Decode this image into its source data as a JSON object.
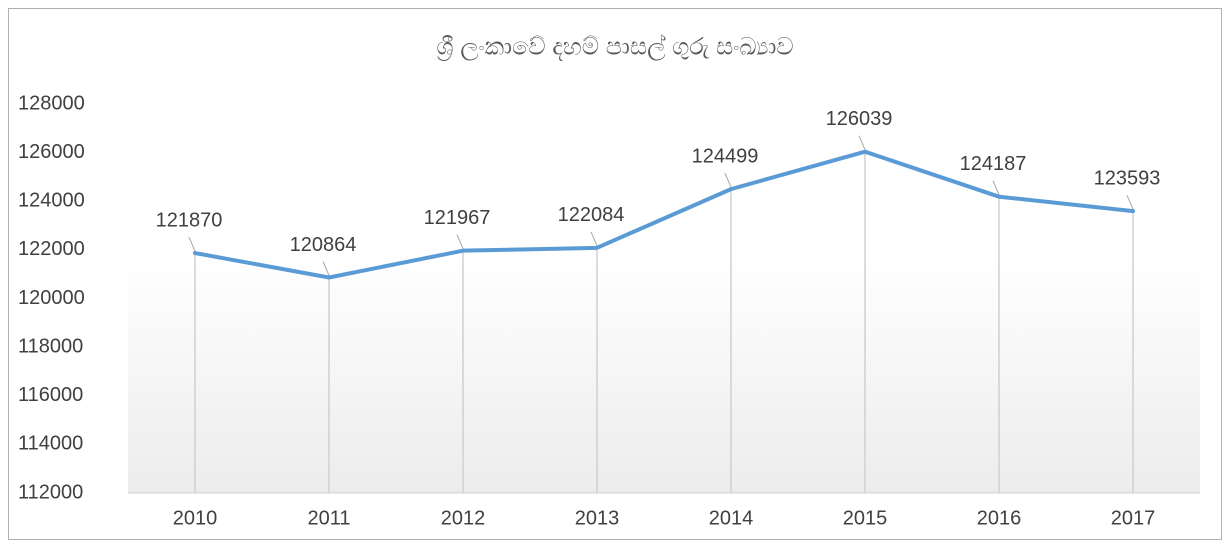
{
  "chart_data": {
    "type": "line",
    "title": "ශ්‍රී ලංකාවේ දහම් පාසල් ගුරු සංඛ්‍යාව",
    "categories": [
      "2010",
      "2011",
      "2012",
      "2013",
      "2014",
      "2015",
      "2016",
      "2017"
    ],
    "values": [
      121870,
      120864,
      121967,
      122084,
      124499,
      126039,
      124187,
      123593
    ],
    "color": "#5b9bd5",
    "drop_lines": true,
    "ylim": [
      112000,
      128000
    ],
    "yticks": [
      112000,
      114000,
      116000,
      118000,
      120000,
      122000,
      124000,
      126000,
      128000
    ]
  }
}
